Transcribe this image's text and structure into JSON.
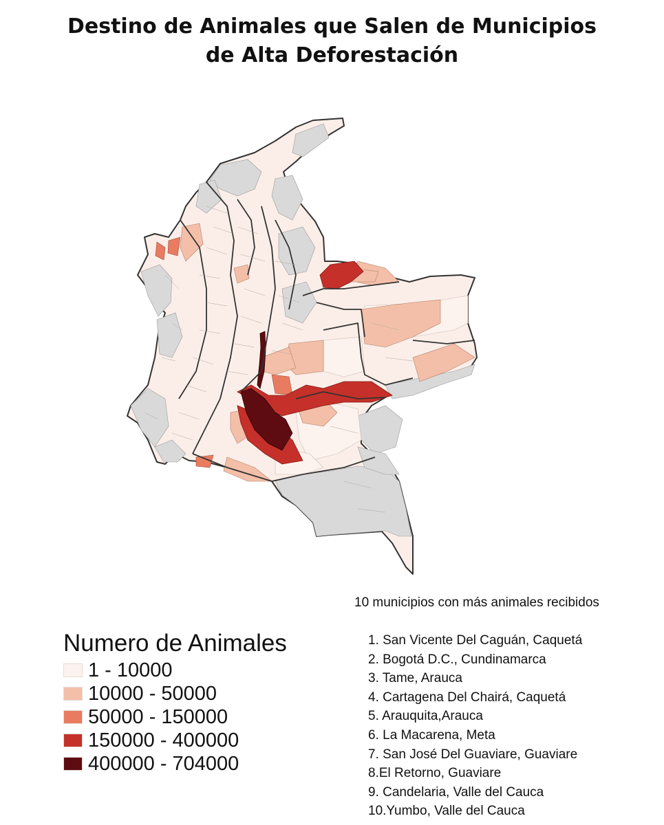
{
  "title": {
    "line1": "Destino de Animales que Salen de Municipios",
    "line2": "de Alta Deforestación"
  },
  "map": {
    "country": "Colombia",
    "no_data_color": "#d9d9d9",
    "border_color": "#3a3a3a"
  },
  "legend": {
    "title": "Numero de Animales",
    "items": [
      {
        "label": "1 - 10000",
        "color": "#fdf3ee"
      },
      {
        "label": "10000 - 50000",
        "color": "#f4bfa8"
      },
      {
        "label": "50000 - 150000",
        "color": "#e97c60"
      },
      {
        "label": "150000 - 400000",
        "color": "#c5312a"
      },
      {
        "label": "400000 - 704000",
        "color": "#5e0c12"
      }
    ]
  },
  "top_municipalities": {
    "title": "10 municipios con más animales recibidos",
    "items": [
      "1. San Vicente Del Caguán, Caquetá",
      "2. Bogotá D.C., Cundinamarca",
      "3. Tame, Arauca",
      "4. Cartagena Del Chairá, Caquetá",
      "5. Arauquita,Arauca",
      "6. La Macarena, Meta",
      "7. San José Del Guaviare, Guaviare",
      "8.El Retorno, Guaviare",
      "9. Candelaria, Valle del Cauca",
      "10.Yumbo, Valle del Cauca"
    ]
  }
}
